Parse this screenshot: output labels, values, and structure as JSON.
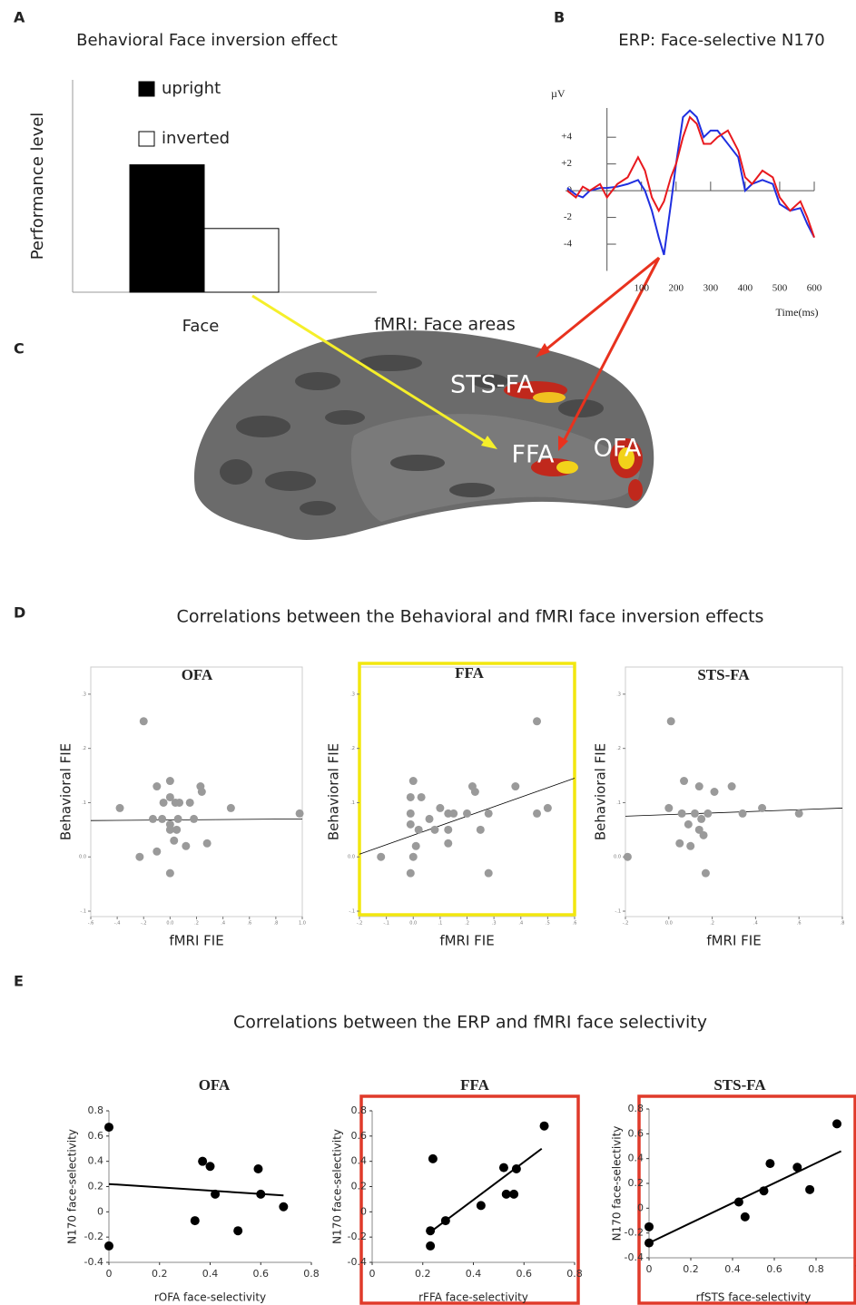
{
  "panel_labels": [
    "A",
    "B",
    "C",
    "D",
    "E"
  ],
  "brain": {
    "title": "fMRI: Face  areas",
    "labels": [
      "STS-FA",
      "FFA",
      "OFA"
    ]
  },
  "sections": {
    "D": "Correlations between the Behavioral and fMRI face inversion effects",
    "E": "Correlations between the ERP and fMRI face selectivity"
  },
  "chart_data": [
    {
      "type": "bar",
      "title": "Behavioral Face inversion effect",
      "ylabel": "Performance level",
      "categories": [
        "Face"
      ],
      "ylim": [
        0,
        5
      ],
      "series": [
        {
          "name": "upright",
          "color": "#000000",
          "values": [
            3
          ]
        },
        {
          "name": "inverted",
          "color": "#ffffff",
          "values": [
            1.5
          ]
        }
      ]
    },
    {
      "type": "line",
      "title": "ERP: Face-selective N170",
      "ylabel": "µV",
      "xlabel": "Time(ms)",
      "xlim": [
        -120,
        600
      ],
      "ylim": [
        -6,
        7
      ],
      "xticks": [
        100,
        200,
        300,
        400,
        500,
        600
      ],
      "yticks": [
        {
          "value": 4,
          "label": "+4"
        },
        {
          "value": 2,
          "label": "+2"
        },
        0,
        -2,
        -4
      ],
      "x": [
        -115,
        -90,
        -70,
        -50,
        -20,
        0,
        30,
        60,
        90,
        110,
        130,
        150,
        165,
        185,
        200,
        220,
        240,
        260,
        280,
        300,
        320,
        350,
        380,
        400,
        420,
        450,
        480,
        500,
        530,
        560,
        580,
        600
      ],
      "series": [
        {
          "color": "#1f2fe0",
          "values": [
            0.2,
            -0.3,
            -0.5,
            0,
            0.2,
            0.2,
            0.3,
            0.5,
            0.8,
            0,
            -1.5,
            -3.5,
            -4.8,
            -1,
            2,
            5.5,
            6,
            5.5,
            4,
            4.5,
            4.5,
            3.5,
            2.5,
            0,
            0.5,
            0.8,
            0.5,
            -1,
            -1.5,
            -1.3,
            -2.5,
            -3.5
          ]
        },
        {
          "color": "#e8191e",
          "values": [
            0,
            -0.5,
            0.3,
            0,
            0.5,
            -0.5,
            0.5,
            1,
            2.5,
            1.5,
            -0.5,
            -1.5,
            -0.8,
            1,
            2,
            4,
            5.5,
            5,
            3.5,
            3.5,
            4,
            4.5,
            3,
            1,
            0.5,
            1.5,
            1,
            -0.5,
            -1.5,
            -0.8,
            -2,
            -3.5
          ]
        }
      ]
    },
    {
      "type": "scatter",
      "title": "OFA",
      "xlabel": "fMRI FIE",
      "ylabel": "Behavioral FIE",
      "color": "#9a9a9a",
      "xlim": [
        -0.6,
        1.0
      ],
      "ylim": [
        -0.11,
        0.35
      ],
      "xticks": [
        {
          "value": -0.6,
          "label": "-.6"
        },
        {
          "value": -0.4,
          "label": "-.4"
        },
        {
          "value": -0.2,
          "label": "-.2"
        },
        {
          "value": 0,
          "label": "0.0"
        },
        {
          "value": 0.2,
          "label": ".2"
        },
        {
          "value": 0.4,
          "label": ".4"
        },
        {
          "value": 0.6,
          "label": ".6"
        },
        {
          "value": 0.8,
          "label": ".8"
        },
        {
          "value": 1.0,
          "label": "1.0"
        }
      ],
      "yticks": [
        {
          "value": -0.1,
          "label": "-.1"
        },
        {
          "value": 0,
          "label": "0.0"
        },
        {
          "value": 0.1,
          "label": ".1"
        },
        {
          "value": 0.2,
          "label": ".2"
        },
        {
          "value": 0.3,
          "label": ".3"
        }
      ],
      "x": [
        -0.2,
        -0.38,
        -0.23,
        -0.1,
        0,
        -0.1,
        0,
        -0.05,
        -0.06,
        0,
        0.04,
        0.07,
        0.15,
        0.06,
        0,
        0.05,
        0.03,
        0.12,
        0.23,
        0.24,
        0.28,
        0.18,
        0.46,
        0,
        0.98,
        -0.13
      ],
      "values": [
        0.25,
        0.09,
        0,
        0.13,
        0.14,
        0.01,
        0.11,
        0.1,
        0.07,
        0.06,
        0.1,
        0.1,
        0.1,
        0.07,
        0.05,
        0.05,
        0.03,
        0.02,
        0.13,
        0.12,
        0.025,
        0.07,
        0.09,
        -0.03,
        0.08,
        0.07
      ],
      "fit": {
        "x": [
          -0.6,
          1.0
        ],
        "values": [
          0.067,
          0.07
        ]
      }
    },
    {
      "type": "scatter",
      "title": "FFA",
      "xlabel": "fMRI FIE",
      "ylabel": "Behavioral FIE",
      "color": "#9a9a9a",
      "highlight": "#f2e70f",
      "xlim": [
        -0.2,
        0.6
      ],
      "ylim": [
        -0.11,
        0.35
      ],
      "xticks": [
        {
          "value": -0.2,
          "label": "-.2"
        },
        {
          "value": -0.1,
          "label": "-.1"
        },
        {
          "value": 0,
          "label": "0.0"
        },
        {
          "value": 0.1,
          "label": ".1"
        },
        {
          "value": 0.2,
          "label": ".2"
        },
        {
          "value": 0.3,
          "label": ".3"
        },
        {
          "value": 0.4,
          "label": ".4"
        },
        {
          "value": 0.5,
          "label": ".5"
        },
        {
          "value": 0.6,
          "label": ".6"
        }
      ],
      "yticks": [
        {
          "value": -0.1,
          "label": "-.1"
        },
        {
          "value": 0,
          "label": "0.0"
        },
        {
          "value": 0.1,
          "label": ".1"
        },
        {
          "value": 0.2,
          "label": ".2"
        },
        {
          "value": 0.3,
          "label": ".3"
        }
      ],
      "x": [
        0,
        -0.01,
        0.03,
        -0.01,
        -0.01,
        0.02,
        0.01,
        0,
        -0.01,
        -0.12,
        0.06,
        0.1,
        0.13,
        0.15,
        0.2,
        0.13,
        0.13,
        0.22,
        0.23,
        0.25,
        0.28,
        0.28,
        0.38,
        0.46,
        0.5,
        0.46,
        0.08
      ],
      "values": [
        0.14,
        0.11,
        0.11,
        0.08,
        0.06,
        0.05,
        0.02,
        0,
        -0.03,
        0,
        0.07,
        0.09,
        0.08,
        0.08,
        0.08,
        0.05,
        0.025,
        0.13,
        0.12,
        0.05,
        0.08,
        -0.03,
        0.13,
        0.25,
        0.09,
        0.08,
        0.05
      ],
      "fit": {
        "x": [
          -0.2,
          0.6
        ],
        "values": [
          0.005,
          0.145
        ]
      }
    },
    {
      "type": "scatter",
      "title": "STS-FA",
      "xlabel": "fMRI FIE",
      "ylabel": "Behavioral FIE",
      "color": "#9a9a9a",
      "xlim": [
        -0.2,
        0.8
      ],
      "ylim": [
        -0.11,
        0.35
      ],
      "xticks": [
        {
          "value": -0.2,
          "label": "-.2"
        },
        {
          "value": 0,
          "label": "0.0"
        },
        {
          "value": 0.2,
          "label": ".2"
        },
        {
          "value": 0.4,
          "label": ".4"
        },
        {
          "value": 0.6,
          "label": ".6"
        },
        {
          "value": 0.8,
          "label": ".8"
        }
      ],
      "yticks": [
        {
          "value": -0.1,
          "label": "-.1"
        },
        {
          "value": 0,
          "label": "0.0"
        },
        {
          "value": 0.1,
          "label": ".1"
        },
        {
          "value": 0.2,
          "label": ".2"
        },
        {
          "value": 0.3,
          "label": ".3"
        }
      ],
      "x": [
        0.01,
        -0.19,
        0,
        0.07,
        0.14,
        0.21,
        0.29,
        0.06,
        0.12,
        0.15,
        0.18,
        0.09,
        0.05,
        0.1,
        0.16,
        0.17,
        0.34,
        0.43,
        0.6,
        0.14
      ],
      "values": [
        0.25,
        0,
        0.09,
        0.14,
        0.13,
        0.12,
        0.13,
        0.08,
        0.08,
        0.07,
        0.08,
        0.06,
        0.025,
        0.02,
        0.04,
        -0.03,
        0.08,
        0.09,
        0.08,
        0.05
      ],
      "fit": {
        "x": [
          -0.2,
          0.8
        ],
        "values": [
          0.075,
          0.09
        ]
      }
    },
    {
      "type": "scatter",
      "title": "OFA",
      "xlabel": "rOFA face-selectivity",
      "ylabel": "N170 face-selectivity",
      "color": "#000000",
      "xlim": [
        0,
        0.8
      ],
      "ylim": [
        -0.4,
        0.8
      ],
      "xticks": [
        0,
        0.2,
        0.4,
        0.6,
        0.8
      ],
      "yticks": [
        -0.4,
        -0.2,
        0,
        0.2,
        0.4,
        0.6,
        0.8
      ],
      "x": [
        0,
        0,
        0.37,
        0.4,
        0.42,
        0.34,
        0.51,
        0.59,
        0.6,
        0.69
      ],
      "values": [
        0.67,
        -0.27,
        0.4,
        0.36,
        0.14,
        -0.07,
        -0.15,
        0.34,
        0.14,
        0.04
      ],
      "fit": {
        "x": [
          0,
          0.69
        ],
        "values": [
          0.22,
          0.13
        ]
      }
    },
    {
      "type": "scatter",
      "title": "FFA",
      "xlabel": "rFFA face-selectivity",
      "ylabel": "N170 face-selectivity",
      "color": "#000000",
      "highlight": "#e03a2a",
      "xlim": [
        0,
        0.8
      ],
      "ylim": [
        -0.4,
        0.8
      ],
      "xticks": [
        0,
        0.2,
        0.4,
        0.6,
        0.8
      ],
      "yticks": [
        -0.4,
        -0.2,
        0,
        0.2,
        0.4,
        0.6,
        0.8
      ],
      "x": [
        0.24,
        0.52,
        0.57,
        0.43,
        0.53,
        0.56,
        0.29,
        0.23,
        0.23,
        0.68
      ],
      "values": [
        0.42,
        0.35,
        0.34,
        0.05,
        0.14,
        0.14,
        -0.07,
        -0.15,
        -0.27,
        0.68
      ],
      "fit": {
        "x": [
          0.23,
          0.67
        ],
        "values": [
          -0.16,
          0.5
        ]
      }
    },
    {
      "type": "scatter",
      "title": "STS-FA",
      "xlabel": "rfSTS face-selectivity",
      "ylabel": "N170 face-selectivity",
      "color": "#000000",
      "highlight": "#e03a2a",
      "xlim": [
        0,
        1
      ],
      "ylim": [
        -0.4,
        0.8
      ],
      "xticks": [
        0,
        0.2,
        0.4,
        0.6,
        0.8,
        1
      ],
      "yticks": [
        -0.4,
        -0.2,
        0,
        0.2,
        0.4,
        0.6,
        0.8
      ],
      "x": [
        0,
        0,
        0.43,
        0.46,
        0.55,
        0.58,
        0.71,
        0.77,
        0.9
      ],
      "values": [
        -0.15,
        -0.28,
        0.05,
        -0.07,
        0.14,
        0.36,
        0.33,
        0.15,
        0.68
      ],
      "fit": {
        "x": [
          0,
          0.92
        ],
        "values": [
          -0.28,
          0.46
        ]
      }
    }
  ]
}
